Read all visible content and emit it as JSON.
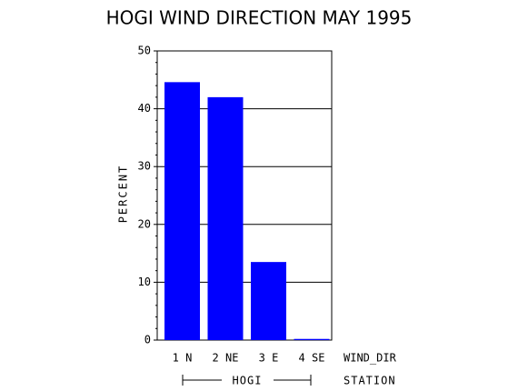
{
  "chart_data": {
    "type": "bar",
    "title": "HOGI WIND DIRECTION MAY 1995",
    "y_label": "PERCENT",
    "x_label": "WIND_DIR",
    "group_label": "HOGI",
    "group_axis_label": "STATION",
    "categories": [
      "1 N",
      "2 NE",
      "3 E",
      "4 SE"
    ],
    "values": [
      44.6,
      42.0,
      13.5,
      0.2
    ],
    "color": "#0000ff",
    "ylim": [
      0,
      50
    ],
    "yticks": [
      0,
      10,
      20,
      30,
      40,
      50
    ],
    "grid": true
  }
}
